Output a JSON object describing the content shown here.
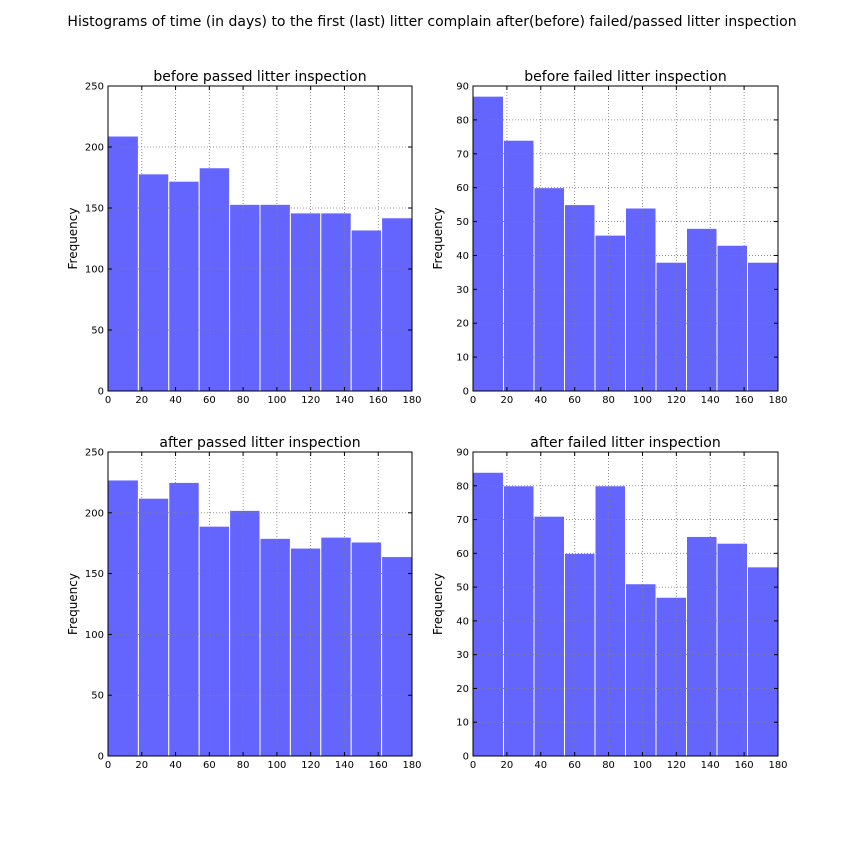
{
  "figure": {
    "title": "Histograms of time (in days) to the first (last) litter complain after(before) failed/passed litter inspection"
  },
  "style": {
    "bar_color": "#6464ff",
    "bar_edge": "#ffffff",
    "grid_color": "#7f7f7f",
    "axis_color": "#000000"
  },
  "chart_data": [
    {
      "type": "bar",
      "title": "before passed litter inspection",
      "xlabel": "",
      "ylabel": "Frequency",
      "bin_edges": [
        0,
        18,
        36,
        54,
        72,
        90,
        108,
        126,
        144,
        162,
        180
      ],
      "values": [
        209,
        178,
        172,
        183,
        153,
        153,
        146,
        146,
        132,
        142
      ],
      "xlim": [
        0,
        180
      ],
      "ylim": [
        0,
        250
      ],
      "xticks": [
        0,
        20,
        40,
        60,
        80,
        100,
        120,
        140,
        160,
        180
      ],
      "yticks": [
        0,
        50,
        100,
        150,
        200,
        250
      ],
      "grid": true
    },
    {
      "type": "bar",
      "title": "before failed litter inspection",
      "xlabel": "",
      "ylabel": "Frequency",
      "bin_edges": [
        0,
        18,
        36,
        54,
        72,
        90,
        108,
        126,
        144,
        162,
        180
      ],
      "values": [
        87,
        74,
        60,
        55,
        46,
        54,
        38,
        48,
        43,
        38
      ],
      "xlim": [
        0,
        180
      ],
      "ylim": [
        0,
        90
      ],
      "xticks": [
        0,
        20,
        40,
        60,
        80,
        100,
        120,
        140,
        160,
        180
      ],
      "yticks": [
        0,
        10,
        20,
        30,
        40,
        50,
        60,
        70,
        80,
        90
      ],
      "grid": true
    },
    {
      "type": "bar",
      "title": "after passed litter inspection",
      "xlabel": "",
      "ylabel": "Frequency",
      "bin_edges": [
        0,
        18,
        36,
        54,
        72,
        90,
        108,
        126,
        144,
        162,
        180
      ],
      "values": [
        227,
        212,
        225,
        189,
        202,
        179,
        171,
        180,
        176,
        164
      ],
      "xlim": [
        0,
        180
      ],
      "ylim": [
        0,
        250
      ],
      "xticks": [
        0,
        20,
        40,
        60,
        80,
        100,
        120,
        140,
        160,
        180
      ],
      "yticks": [
        0,
        50,
        100,
        150,
        200,
        250
      ],
      "grid": true
    },
    {
      "type": "bar",
      "title": "after failed litter inspection",
      "xlabel": "",
      "ylabel": "Frequency",
      "bin_edges": [
        0,
        18,
        36,
        54,
        72,
        90,
        108,
        126,
        144,
        162,
        180
      ],
      "values": [
        84,
        80,
        71,
        60,
        80,
        51,
        47,
        65,
        63,
        56
      ],
      "xlim": [
        0,
        180
      ],
      "ylim": [
        0,
        90
      ],
      "xticks": [
        0,
        20,
        40,
        60,
        80,
        100,
        120,
        140,
        160,
        180
      ],
      "yticks": [
        0,
        10,
        20,
        30,
        40,
        50,
        60,
        70,
        80,
        90
      ],
      "grid": true
    }
  ]
}
